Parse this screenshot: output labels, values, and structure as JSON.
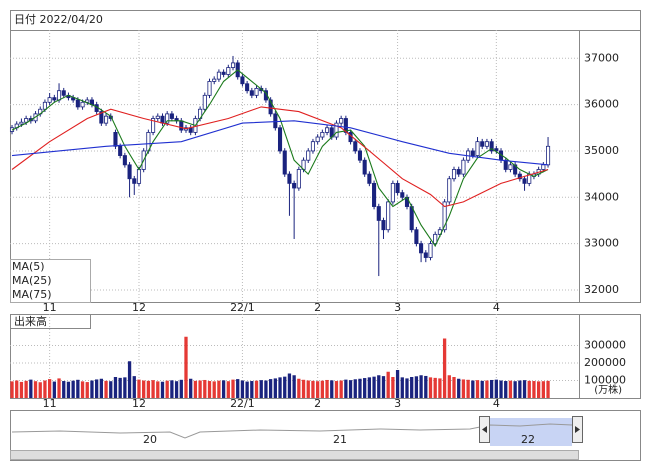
{
  "header": {
    "date_label": "日付 2022/04/20"
  },
  "chart_data": {
    "type": "candlestick",
    "ylim": [
      31740,
      37610
    ],
    "yticks": [
      32000,
      33000,
      34000,
      35000,
      36000,
      37000
    ],
    "xlim": [
      -0.43,
      120.37
    ],
    "xticks": [
      {
        "value": 8,
        "label": "11"
      },
      {
        "value": 27,
        "label": "12"
      },
      {
        "value": 49,
        "label": "22/1"
      },
      {
        "value": 65,
        "label": "2"
      },
      {
        "value": 82,
        "label": "3"
      },
      {
        "value": 103,
        "label": "4"
      }
    ],
    "up_color": "#ffffff",
    "down_color": "#1a237e",
    "grid": true,
    "candles": [
      [
        35420,
        35560,
        35360,
        35500
      ],
      [
        35500,
        35640,
        35440,
        35580
      ],
      [
        35580,
        35700,
        35520,
        35620
      ],
      [
        35620,
        35760,
        35560,
        35700
      ],
      [
        35700,
        35760,
        35590,
        35650
      ],
      [
        35650,
        35860,
        35600,
        35800
      ],
      [
        35800,
        35960,
        35740,
        35900
      ],
      [
        35900,
        36110,
        35840,
        36050
      ],
      [
        36050,
        36250,
        35990,
        36150
      ],
      [
        36150,
        36210,
        36040,
        36100
      ],
      [
        36100,
        36460,
        36040,
        36300
      ],
      [
        36300,
        36360,
        36140,
        36200
      ],
      [
        36200,
        36260,
        36090,
        36150
      ],
      [
        36150,
        36210,
        36040,
        36100
      ],
      [
        36100,
        36160,
        35890,
        35950
      ],
      [
        35950,
        36110,
        35890,
        36050
      ],
      [
        36050,
        36160,
        35990,
        36100
      ],
      [
        36100,
        36160,
        35940,
        36000
      ],
      [
        36000,
        36060,
        35790,
        35850
      ],
      [
        35850,
        35910,
        35540,
        35600
      ],
      [
        35600,
        35810,
        35540,
        35750
      ],
      [
        35750,
        35810,
        35640,
        35700
      ],
      [
        35400,
        35460,
        35040,
        35100
      ],
      [
        35100,
        35160,
        34840,
        34900
      ],
      [
        34900,
        34960,
        34640,
        34700
      ],
      [
        34700,
        34760,
        34000,
        34400
      ],
      [
        34400,
        34460,
        34050,
        34300
      ],
      [
        34300,
        34660,
        34240,
        34600
      ],
      [
        34600,
        35060,
        34540,
        35000
      ],
      [
        35000,
        35460,
        34940,
        35400
      ],
      [
        35400,
        35760,
        35340,
        35700
      ],
      [
        35700,
        35810,
        35640,
        35750
      ],
      [
        35750,
        35810,
        35540,
        35600
      ],
      [
        35600,
        35860,
        35540,
        35800
      ],
      [
        35800,
        35860,
        35640,
        35700
      ],
      [
        35700,
        35760,
        35590,
        35650
      ],
      [
        35650,
        35710,
        35390,
        35450
      ],
      [
        35450,
        35560,
        35390,
        35500
      ],
      [
        35500,
        35560,
        35340,
        35400
      ],
      [
        35400,
        35760,
        35340,
        35700
      ],
      [
        35700,
        35960,
        35640,
        35900
      ],
      [
        35900,
        36260,
        35840,
        36200
      ],
      [
        36200,
        36560,
        36140,
        36500
      ],
      [
        36500,
        36610,
        36440,
        36550
      ],
      [
        36550,
        36760,
        36490,
        36700
      ],
      [
        36700,
        36760,
        36590,
        36650
      ],
      [
        36650,
        36860,
        36590,
        36800
      ],
      [
        36800,
        37050,
        36740,
        36900
      ],
      [
        36900,
        36960,
        36540,
        36600
      ],
      [
        36600,
        36660,
        36390,
        36450
      ],
      [
        36450,
        36510,
        36240,
        36300
      ],
      [
        36300,
        36360,
        36140,
        36200
      ],
      [
        36200,
        36410,
        36140,
        36350
      ],
      [
        36350,
        36410,
        36240,
        36300
      ],
      [
        36300,
        36360,
        36040,
        36100
      ],
      [
        36100,
        36160,
        35740,
        35800
      ],
      [
        35800,
        35860,
        35440,
        35500
      ],
      [
        35500,
        35560,
        34940,
        35000
      ],
      [
        35000,
        35060,
        34440,
        34500
      ],
      [
        34500,
        34560,
        33600,
        34300
      ],
      [
        34300,
        34360,
        33100,
        34200
      ],
      [
        34200,
        34660,
        34140,
        34600
      ],
      [
        34600,
        34860,
        34540,
        34800
      ],
      [
        34800,
        35060,
        34740,
        35000
      ],
      [
        35000,
        35260,
        34940,
        35200
      ],
      [
        35200,
        35360,
        35140,
        35300
      ],
      [
        35300,
        35460,
        35240,
        35400
      ],
      [
        35400,
        35560,
        35340,
        35500
      ],
      [
        35500,
        35560,
        35240,
        35300
      ],
      [
        35300,
        35660,
        35240,
        35600
      ],
      [
        35600,
        35760,
        35540,
        35700
      ],
      [
        35700,
        35760,
        35340,
        35400
      ],
      [
        35400,
        35460,
        35140,
        35200
      ],
      [
        35200,
        35260,
        34940,
        35000
      ],
      [
        35000,
        35060,
        34740,
        34800
      ],
      [
        34800,
        34860,
        34440,
        34500
      ],
      [
        34500,
        34560,
        34240,
        34300
      ],
      [
        34300,
        34360,
        33740,
        33800
      ],
      [
        33800,
        33860,
        32300,
        33500
      ],
      [
        33500,
        33560,
        33100,
        33300
      ],
      [
        33300,
        33960,
        33240,
        33900
      ],
      [
        33900,
        34360,
        33840,
        34300
      ],
      [
        34300,
        34360,
        34040,
        34100
      ],
      [
        34100,
        34160,
        33940,
        34000
      ],
      [
        34000,
        34060,
        33740,
        33800
      ],
      [
        33800,
        33860,
        33240,
        33300
      ],
      [
        33300,
        33360,
        32940,
        33000
      ],
      [
        33000,
        33060,
        32600,
        32800
      ],
      [
        32800,
        32860,
        32600,
        32700
      ],
      [
        32700,
        33060,
        32640,
        33000
      ],
      [
        33000,
        33260,
        32940,
        33200
      ],
      [
        33200,
        33360,
        33140,
        33300
      ],
      [
        33300,
        33960,
        33240,
        33900
      ],
      [
        33900,
        34460,
        33840,
        34400
      ],
      [
        34400,
        34660,
        34340,
        34600
      ],
      [
        34600,
        34660,
        34440,
        34500
      ],
      [
        34500,
        34860,
        34440,
        34800
      ],
      [
        34800,
        35060,
        34740,
        35000
      ],
      [
        35000,
        35060,
        34840,
        34900
      ],
      [
        34900,
        35300,
        34840,
        35200
      ],
      [
        35200,
        35260,
        35040,
        35100
      ],
      [
        35100,
        35260,
        35040,
        35200
      ],
      [
        35200,
        35260,
        34940,
        35000
      ],
      [
        35050,
        35110,
        34940,
        35000
      ],
      [
        35000,
        35060,
        34740,
        34800
      ],
      [
        34800,
        34860,
        34540,
        34600
      ],
      [
        34600,
        34760,
        34540,
        34700
      ],
      [
        34700,
        34760,
        34440,
        34500
      ],
      [
        34500,
        34560,
        34340,
        34400
      ],
      [
        34400,
        34460,
        34140,
        34300
      ],
      [
        34300,
        34560,
        34240,
        34500
      ],
      [
        34450,
        34560,
        34390,
        34500
      ],
      [
        34500,
        34660,
        34440,
        34600
      ],
      [
        34600,
        34760,
        34540,
        34700
      ],
      [
        34700,
        35300,
        34640,
        35100
      ]
    ],
    "series": [
      {
        "name": "MA(5)",
        "color": "#1b7a1b",
        "x": [
          0,
          3,
          6,
          9,
          12,
          15,
          18,
          21,
          24,
          27,
          30,
          33,
          36,
          39,
          42,
          45,
          48,
          51,
          54,
          57,
          60,
          63,
          66,
          69,
          72,
          75,
          78,
          81,
          84,
          87,
          90,
          93,
          96,
          99,
          102,
          105,
          108,
          111,
          114
        ],
        "values": [
          35450,
          35600,
          35800,
          36050,
          36200,
          36080,
          35950,
          35750,
          35100,
          34600,
          35200,
          35650,
          35650,
          35550,
          36000,
          36500,
          36750,
          36500,
          36250,
          35700,
          34800,
          34500,
          35100,
          35400,
          35450,
          35100,
          34200,
          33800,
          34000,
          33400,
          32950,
          33600,
          34400,
          34850,
          35050,
          34850,
          34600,
          34450,
          34600
        ]
      },
      {
        "name": "MA(25)",
        "color": "#e02020",
        "x": [
          0,
          8,
          16,
          21,
          28,
          37,
          46,
          53,
          61,
          70,
          76,
          83,
          89,
          92,
          96,
          100,
          104,
          109,
          114
        ],
        "values": [
          34600,
          35200,
          35700,
          35900,
          35700,
          35480,
          35700,
          35950,
          35850,
          35500,
          35000,
          34400,
          34060,
          33800,
          33900,
          34100,
          34300,
          34450,
          34600
        ]
      },
      {
        "name": "MA(75)",
        "color": "#2030d0",
        "x": [
          0,
          10,
          20,
          36,
          49,
          60,
          72,
          83,
          93,
          104,
          114
        ],
        "values": [
          34900,
          35000,
          35100,
          35200,
          35600,
          35650,
          35500,
          35200,
          34950,
          34800,
          34700
        ]
      }
    ]
  },
  "volume": {
    "title": "出来高",
    "unit": "(万株)",
    "ylim": [
      0,
      480000
    ],
    "yticks": [
      100000,
      200000,
      300000
    ],
    "up_color": "#e53935",
    "down_color": "#1a237e",
    "values": [
      95000,
      100000,
      92000,
      98000,
      105000,
      96000,
      90000,
      100000,
      108000,
      94000,
      112000,
      97000,
      93000,
      99000,
      104000,
      95000,
      91000,
      100000,
      106000,
      110000,
      98000,
      96000,
      120000,
      115000,
      118000,
      210000,
      125000,
      105000,
      100000,
      98000,
      102000,
      95000,
      93000,
      99000,
      101000,
      96000,
      104000,
      350000,
      110000,
      98000,
      100000,
      103000,
      97000,
      95000,
      99000,
      101000,
      96000,
      105000,
      108000,
      100000,
      94000,
      97000,
      99000,
      102000,
      100000,
      108000,
      112000,
      118000,
      122000,
      140000,
      130000,
      110000,
      104000,
      100000,
      98000,
      96000,
      99000,
      103000,
      101000,
      97000,
      100000,
      105000,
      102000,
      107000,
      110000,
      114000,
      118000,
      122000,
      130000,
      125000,
      150000,
      120000,
      160000,
      118000,
      112000,
      120000,
      124000,
      130000,
      126000,
      118000,
      115000,
      112000,
      340000,
      130000,
      120000,
      110000,
      106000,
      104000,
      100000,
      102000,
      98000,
      100000,
      103000,
      105000,
      100000,
      97000,
      99000,
      96000,
      100000,
      102000,
      98000,
      97000,
      95000,
      96000,
      98000
    ]
  },
  "navigator": {
    "labels": [
      "20",
      "21",
      "22"
    ]
  }
}
